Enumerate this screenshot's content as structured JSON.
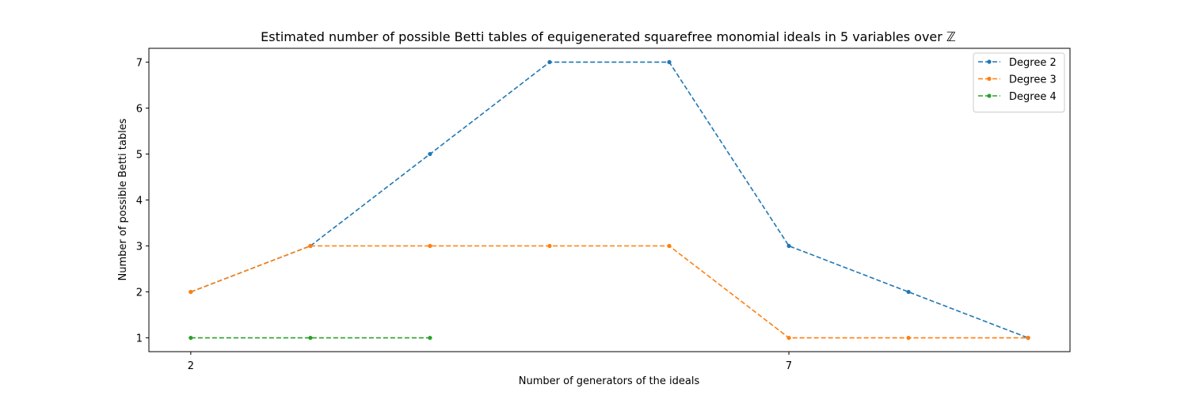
{
  "chart_data": {
    "type": "line",
    "title": "Estimated number of possible Betti tables of equigenerated squarefree monomial ideals in 5 variables over ℤ",
    "xlabel": "Number of generators of the ideals",
    "ylabel": "Number of possible Betti tables",
    "xlim": [
      1.65,
      9.35
    ],
    "ylim": [
      0.7,
      7.3
    ],
    "x_ticks": [
      2,
      7
    ],
    "y_ticks": [
      1,
      2,
      3,
      4,
      5,
      6,
      7
    ],
    "grid": false,
    "legend_position": "top-right",
    "series": [
      {
        "name": "Degree 2",
        "color": "#1f77b4",
        "x": [
          2,
          3,
          4,
          5,
          6,
          7,
          8,
          9
        ],
        "y": [
          2,
          3,
          5,
          7,
          7,
          3,
          2,
          1
        ]
      },
      {
        "name": "Degree 3",
        "color": "#ff7f0e",
        "x": [
          2,
          3,
          4,
          5,
          6,
          7,
          8,
          9
        ],
        "y": [
          2,
          3,
          3,
          3,
          3,
          1,
          1,
          1
        ]
      },
      {
        "name": "Degree 4",
        "color": "#2ca02c",
        "x": [
          2,
          3,
          4
        ],
        "y": [
          1,
          1,
          1
        ]
      }
    ]
  }
}
